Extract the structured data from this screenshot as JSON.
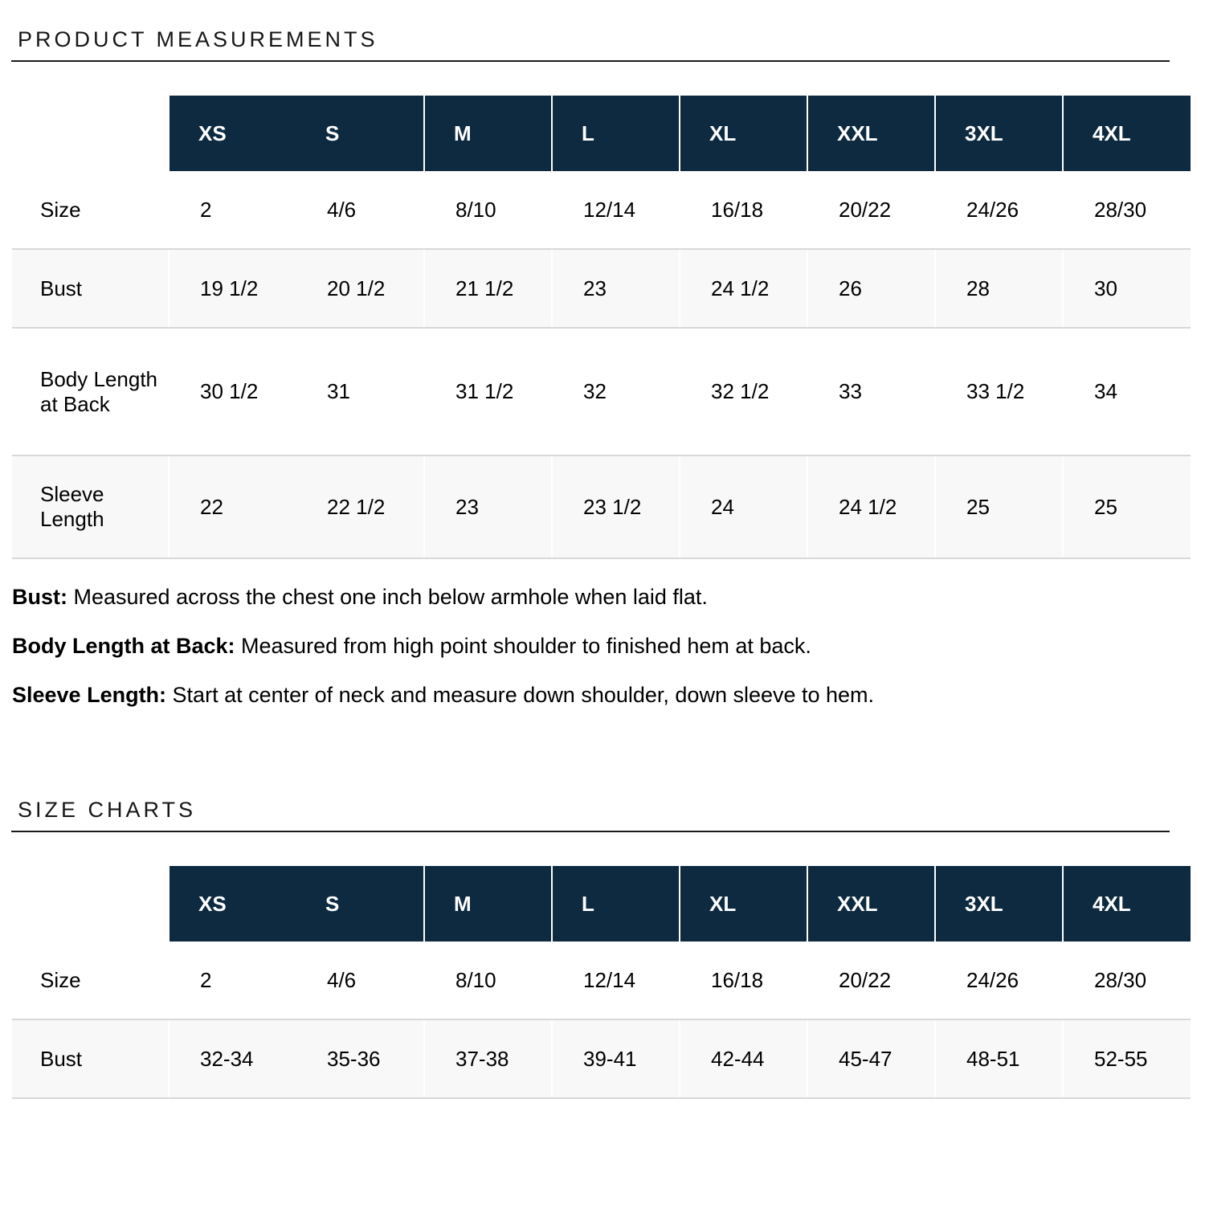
{
  "product_measurements": {
    "title": "PRODUCT MEASUREMENTS",
    "table": {
      "columns": [
        "XS",
        "S",
        "M",
        "L",
        "XL",
        "XXL",
        "3XL",
        "4XL"
      ],
      "rows": [
        {
          "label": "Size",
          "values": [
            "2",
            "4/6",
            "8/10",
            "12/14",
            "16/18",
            "20/22",
            "24/26",
            "28/30"
          ]
        },
        {
          "label": "Bust",
          "values": [
            "19 1/2",
            "20 1/2",
            "21 1/2",
            "23",
            "24 1/2",
            "26",
            "28",
            "30"
          ]
        },
        {
          "label": "Body Length at Back",
          "values": [
            "30 1/2",
            "31",
            "31 1/2",
            "32",
            "32 1/2",
            "33",
            "33 1/2",
            "34"
          ]
        },
        {
          "label": "Sleeve Length",
          "values": [
            "22",
            "22 1/2",
            "23",
            "23 1/2",
            "24",
            "24 1/2",
            "25",
            "25"
          ]
        }
      ]
    },
    "notes": [
      {
        "term": "Bust:",
        "definition": " Measured across the chest one inch below armhole when laid flat."
      },
      {
        "term": "Body Length at Back:",
        "definition": " Measured from high point shoulder to finished hem at back."
      },
      {
        "term": "Sleeve Length:",
        "definition": " Start at center of neck and measure down shoulder, down sleeve to hem."
      }
    ]
  },
  "size_charts": {
    "title": "SIZE CHARTS",
    "table": {
      "columns": [
        "XS",
        "S",
        "M",
        "L",
        "XL",
        "XXL",
        "3XL",
        "4XL"
      ],
      "rows": [
        {
          "label": "Size",
          "values": [
            "2",
            "4/6",
            "8/10",
            "12/14",
            "16/18",
            "20/22",
            "24/26",
            "28/30"
          ]
        },
        {
          "label": "Bust",
          "values": [
            "32-34",
            "35-36",
            "37-38",
            "39-41",
            "42-44",
            "45-47",
            "48-51",
            "52-55"
          ]
        }
      ]
    }
  },
  "colors": {
    "header_navy": "#0d2a40",
    "row_alt_gray": "#f8f8f8",
    "row_divider": "#d8d8d8",
    "title_text": "#161616"
  }
}
